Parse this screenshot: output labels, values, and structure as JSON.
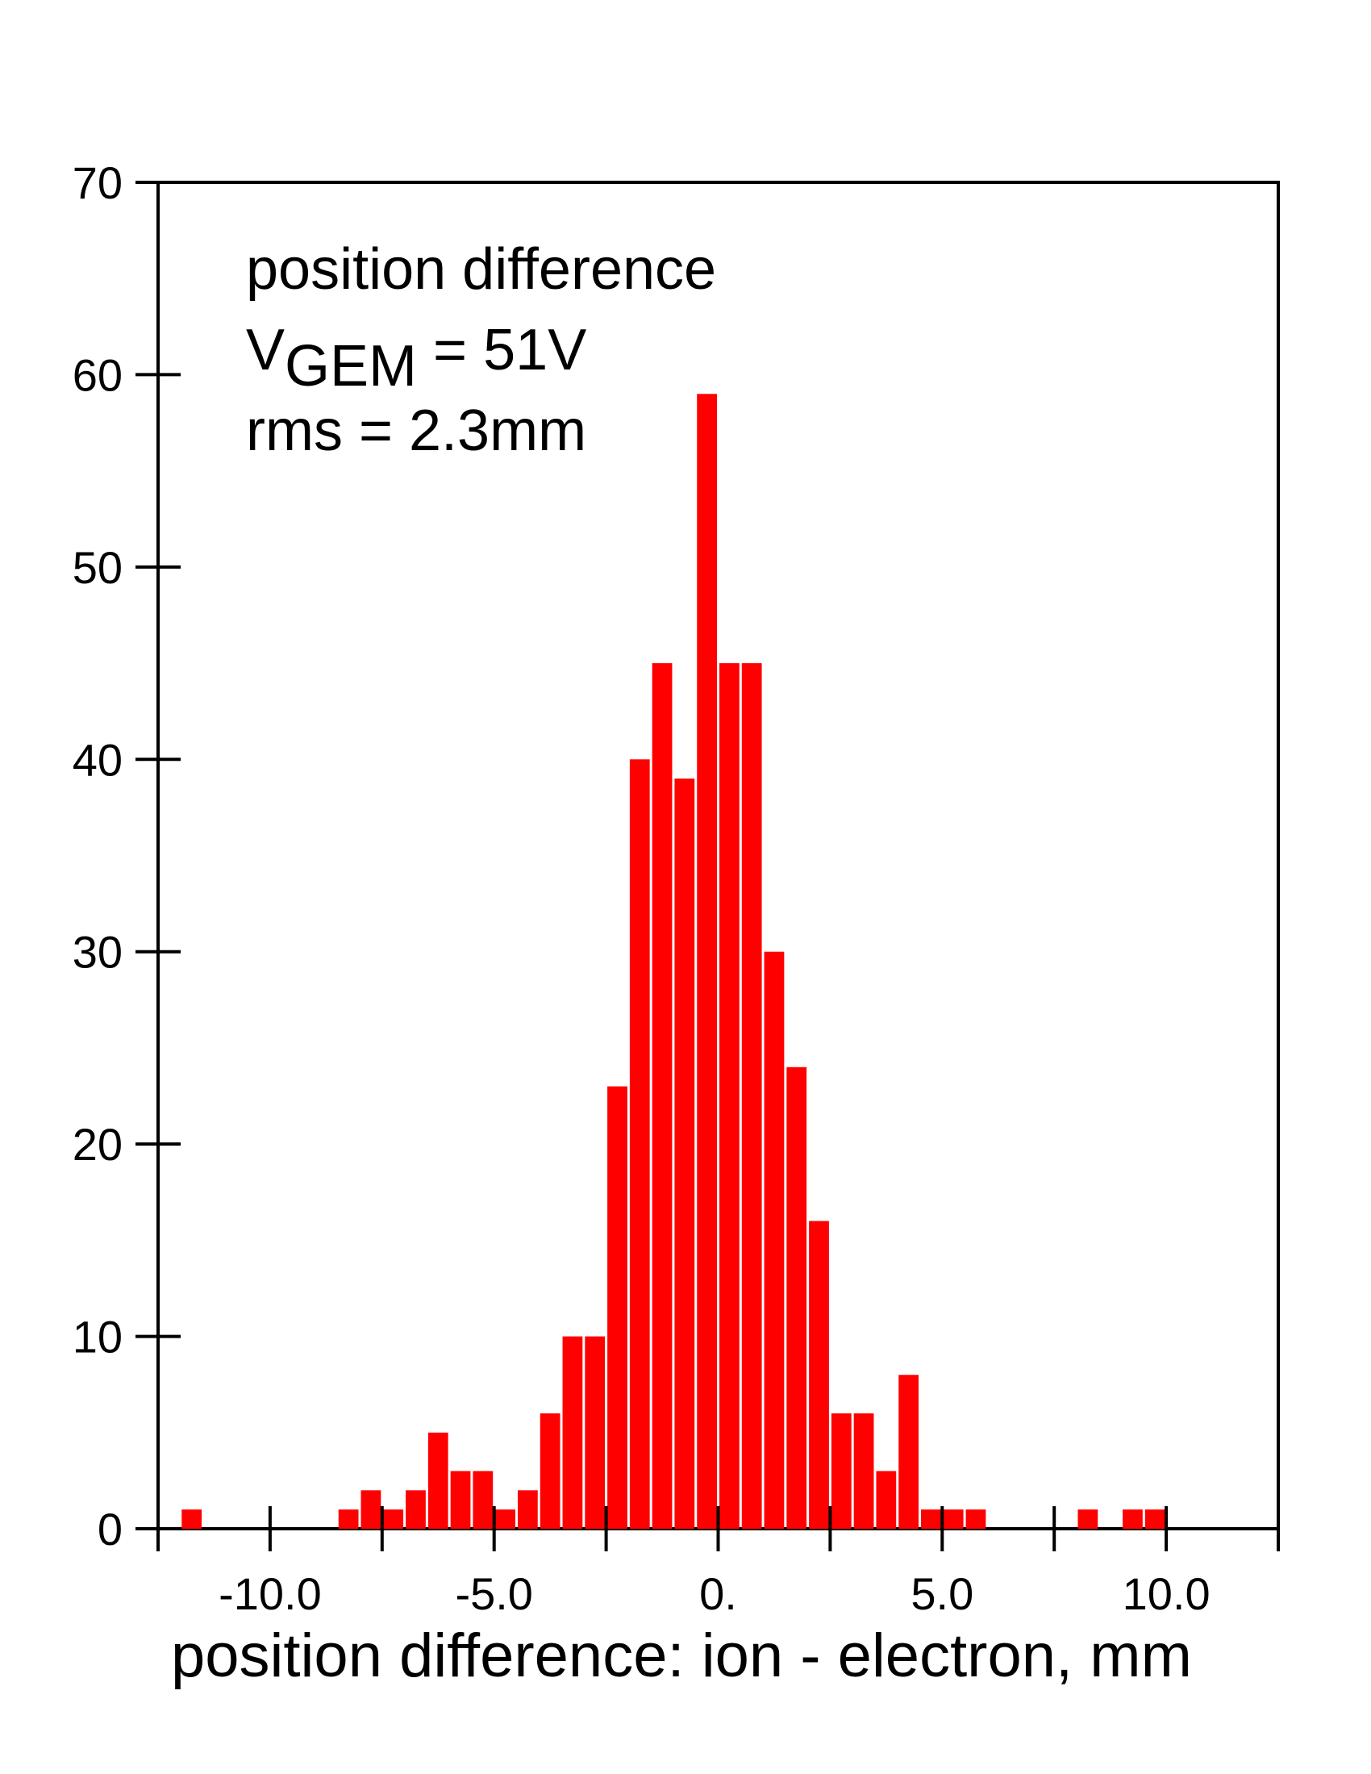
{
  "chart_data": {
    "type": "bar",
    "xlabel": "position difference: ion - electron, mm",
    "ylabel": "",
    "xlim": [
      -12.5,
      12.5
    ],
    "ylim": [
      0,
      70
    ],
    "x_ticks": [
      -12.5,
      -10,
      -7.5,
      -5,
      -2.5,
      0,
      2.5,
      5,
      7.5,
      10,
      12.5
    ],
    "x_tick_labels": [
      {
        "value": -10,
        "label": "-10.0"
      },
      {
        "value": -5,
        "label": "-5.0"
      },
      {
        "value": 0,
        "label": "0."
      },
      {
        "value": 5,
        "label": "5.0"
      },
      {
        "value": 10,
        "label": "10.0"
      }
    ],
    "y_ticks": [
      0,
      10,
      20,
      30,
      40,
      50,
      60,
      70
    ],
    "y_tick_labels": [
      "0",
      "10",
      "20",
      "30",
      "40",
      "50",
      "60",
      "70"
    ],
    "bin_width": 0.5,
    "x": [
      -11.75,
      -8.25,
      -7.75,
      -7.25,
      -6.75,
      -6.25,
      -5.75,
      -5.25,
      -4.75,
      -4.25,
      -3.75,
      -3.25,
      -2.75,
      -2.25,
      -1.75,
      -1.25,
      -0.75,
      -0.25,
      0.25,
      0.75,
      1.25,
      1.75,
      2.25,
      2.75,
      3.25,
      3.75,
      4.25,
      4.75,
      5.25,
      5.75,
      8.25,
      9.25,
      9.75
    ],
    "values": [
      1,
      1,
      2,
      1,
      2,
      5,
      3,
      3,
      1,
      2,
      6,
      10,
      10,
      23,
      40,
      45,
      39,
      59,
      45,
      45,
      30,
      24,
      16,
      6,
      6,
      3,
      8,
      1,
      1,
      1,
      1,
      1,
      1
    ],
    "bar_color": "#ff0000",
    "annotations": {
      "line1": "position difference",
      "line2_main": "V",
      "line2_sub": "GEM",
      "line2_rest": " = 51V",
      "line3": "rms = 2.3mm"
    }
  }
}
